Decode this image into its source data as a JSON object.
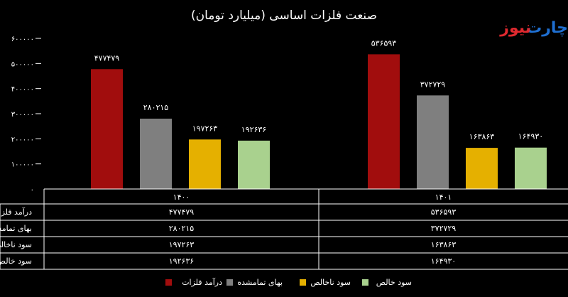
{
  "brand": {
    "part1": "چارت",
    "part2": "نیوز"
  },
  "chart_data": {
    "type": "bar",
    "title": "صنعت فلزات اساسی (میلیارد تومان)",
    "categories": [
      "۱۴۰۰",
      "۱۴۰۱"
    ],
    "ylim": [
      0,
      600000
    ],
    "yticks": [
      "۰",
      "۱۰۰۰۰۰",
      "۲۰۰۰۰۰",
      "۳۰۰۰۰۰",
      "۴۰۰۰۰۰",
      "۵۰۰۰۰۰",
      "۶۰۰۰۰۰"
    ],
    "ytick_values": [
      0,
      100000,
      200000,
      300000,
      400000,
      500000,
      600000
    ],
    "grid": false,
    "legend_position": "bottom",
    "series": [
      {
        "name": "درآمد فلزات",
        "row_label": "درآمد فلزا",
        "color": "#a10d0d",
        "values": [
          477479,
          536593
        ],
        "labels": [
          "۴۷۷۴۷۹",
          "۵۳۶۵۹۳"
        ]
      },
      {
        "name": "بهای تمامشده",
        "row_label": "بهای تمامشد",
        "color": "#7f7f7f",
        "values": [
          280215,
          372729
        ],
        "labels": [
          "۲۸۰۲۱۵",
          "۳۷۲۷۲۹"
        ]
      },
      {
        "name": "سود ناخالص",
        "row_label": "سود ناخالص",
        "color": "#e5b000",
        "values": [
          197263,
          163863
        ],
        "labels": [
          "۱۹۷۲۶۳",
          "۱۶۳۸۶۳"
        ]
      },
      {
        "name": "سود خالص",
        "row_label": "سود خالص",
        "color": "#a9d18e",
        "values": [
          192636,
          164930
        ],
        "labels": [
          "۱۹۲۶۳۶",
          "۱۶۴۹۳۰"
        ]
      }
    ]
  }
}
